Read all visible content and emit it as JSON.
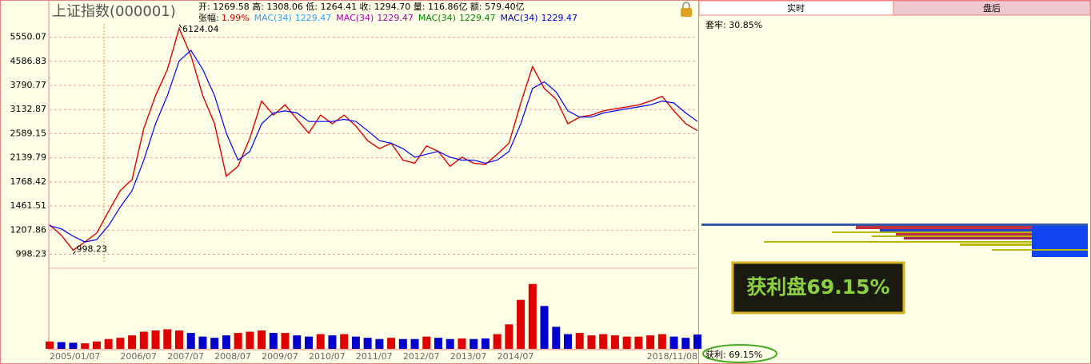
{
  "header": {
    "title": "上证指数(000001)",
    "quote": "开: 1269.58 高: 1308.06 低: 1264.41 收: 1294.70 量: 116.86亿 额: 579.40亿",
    "change_label": "张幅:",
    "change": "1.99%",
    "change_color": "#e00000",
    "indicators": [
      {
        "name": "MAC(34)",
        "value": 1229.47,
        "color": "#3399ff"
      },
      {
        "name": "MAC(34)",
        "value": 1229.47,
        "color": "#aa00aa"
      },
      {
        "name": "MAC(34)",
        "value": 1229.47,
        "color": "#008800"
      },
      {
        "name": "MAC(34)",
        "value": 1229.47,
        "color": "#0000cc"
      }
    ]
  },
  "chart_data": [
    {
      "type": "line",
      "categories": [
        "2005/01/07",
        null,
        null,
        null,
        null,
        null,
        "2006/07",
        null,
        null,
        null,
        "2007/07",
        null,
        null,
        null,
        "2008/07",
        null,
        null,
        null,
        "2009/07",
        null,
        null,
        null,
        "2010/07",
        null,
        null,
        null,
        "2011/07",
        null,
        null,
        null,
        "2012/07",
        null,
        null,
        null,
        "2013/07",
        null,
        null,
        null,
        "2014/07",
        null,
        null,
        null,
        null,
        null,
        null,
        null,
        null,
        null,
        null,
        null,
        null,
        null,
        null,
        null,
        null,
        "2018/11/08"
      ],
      "series": [
        {
          "color": "#e00000",
          "values": [
            1260,
            1160,
            1030,
            1100,
            1180,
            1400,
            1650,
            1800,
            2700,
            3500,
            4300,
            5950,
            4800,
            3500,
            2800,
            1850,
            2000,
            2500,
            3350,
            3000,
            3250,
            2900,
            2600,
            3000,
            2800,
            3000,
            2750,
            2450,
            2300,
            2400,
            2100,
            2050,
            2350,
            2250,
            2000,
            2150,
            2050,
            2030,
            2200,
            2400,
            3300,
            4400,
            3700,
            3400,
            2800,
            2950,
            3000,
            3100,
            3150,
            3200,
            3250,
            3350,
            3480,
            3100,
            2800,
            2650
          ]
        },
        {
          "color": "#0000ff",
          "values": [
            1250,
            1220,
            1150,
            1100,
            1120,
            1250,
            1450,
            1650,
            2100,
            2800,
            3500,
            4600,
            5000,
            4300,
            3500,
            2600,
            2100,
            2250,
            2800,
            3050,
            3100,
            3050,
            2850,
            2850,
            2850,
            2900,
            2850,
            2650,
            2450,
            2400,
            2300,
            2150,
            2200,
            2250,
            2150,
            2100,
            2100,
            2050,
            2100,
            2250,
            2800,
            3700,
            3900,
            3600,
            3100,
            2950,
            2950,
            3050,
            3100,
            3150,
            3200,
            3250,
            3350,
            3300,
            3050,
            2850
          ]
        }
      ],
      "ylim": [
        940,
        6400
      ],
      "log_scale": true,
      "grid": true,
      "yticks": [
        998.23,
        1207.86,
        1461.51,
        1768.42,
        2139.79,
        2589.15,
        3132.87,
        3790.77,
        4586.83,
        5550.07
      ],
      "annotations": [
        {
          "value": 6124.04
        },
        {
          "value": 998.23
        }
      ]
    },
    {
      "type": "bar",
      "values": [
        60,
        55,
        50,
        45,
        60,
        80,
        90,
        110,
        140,
        150,
        160,
        150,
        130,
        100,
        90,
        110,
        130,
        140,
        150,
        130,
        130,
        110,
        100,
        120,
        110,
        120,
        100,
        90,
        80,
        90,
        80,
        80,
        100,
        90,
        80,
        85,
        80,
        85,
        120,
        200,
        400,
        530,
        350,
        180,
        120,
        130,
        110,
        120,
        110,
        100,
        100,
        110,
        120,
        100,
        90,
        117
      ],
      "ylim": [
        0,
        600
      ],
      "up_color": "#e00000",
      "down_color": "#0000cc"
    }
  ],
  "panel": {
    "tabs": [
      "实时",
      "盘后"
    ],
    "trapped": "套牢: 30.85%",
    "profit": "获利: 69.15%",
    "callout": "获利盘69.15%"
  }
}
